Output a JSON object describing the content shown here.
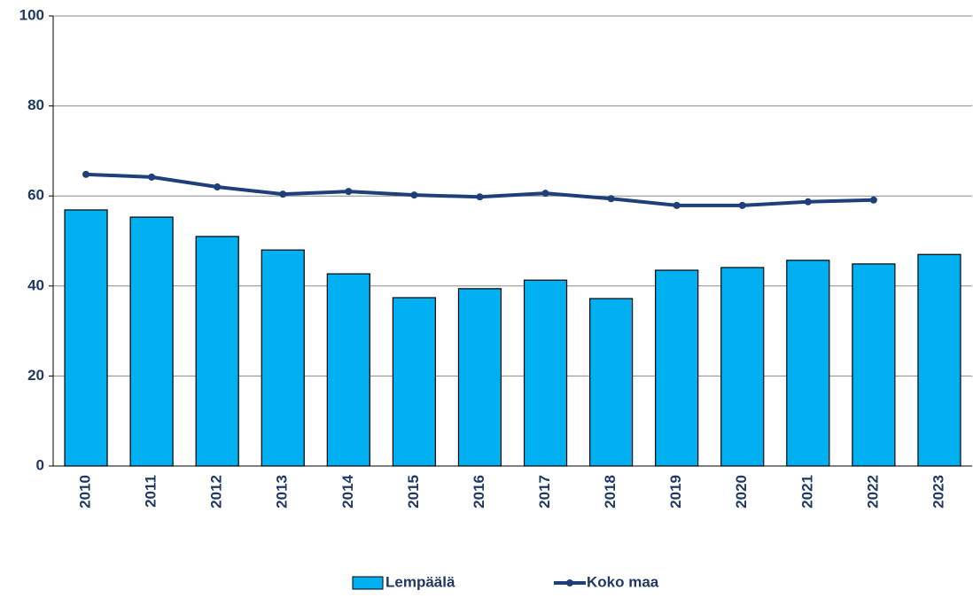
{
  "chart_data": {
    "type": "bar_line",
    "categories": [
      "2010",
      "2011",
      "2012",
      "2013",
      "2014",
      "2015",
      "2016",
      "2017",
      "2018",
      "2019",
      "2020",
      "2021",
      "2022",
      "2023"
    ],
    "series": [
      {
        "name": "Lempäälä",
        "type": "bar",
        "color": "#00b0f0",
        "values": [
          56.9,
          55.3,
          51.0,
          48.0,
          42.7,
          37.4,
          39.4,
          41.3,
          37.2,
          43.5,
          44.1,
          45.7,
          44.9,
          47.0
        ]
      },
      {
        "name": "Koko maa",
        "type": "line",
        "color": "#1f3f7a",
        "values": [
          64.8,
          64.2,
          62.0,
          60.4,
          61.0,
          60.2,
          59.8,
          60.6,
          59.4,
          57.9,
          57.9,
          58.7,
          59.1,
          null
        ]
      }
    ],
    "ylim": [
      0,
      100
    ],
    "yticks": [
      0,
      20,
      40,
      60,
      80,
      100
    ],
    "grid": true,
    "legend": "bottom"
  }
}
